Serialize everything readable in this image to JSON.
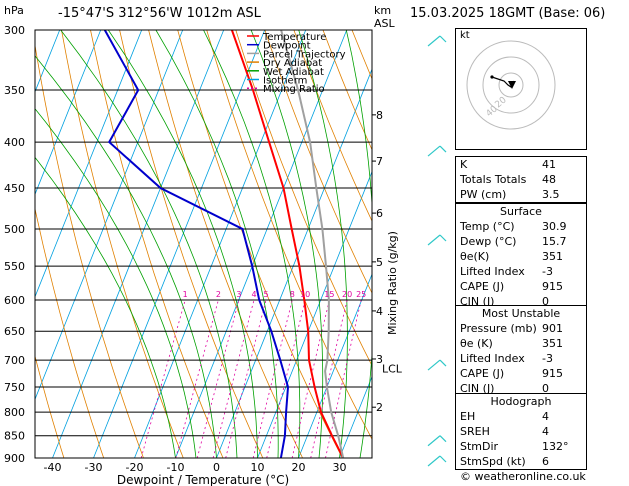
{
  "header": {
    "hpa_label": "hPa",
    "location": "-15°47'S  312°56'W  1012m  ASL",
    "km_label": "km",
    "asl_label": "ASL",
    "datetime": "15.03.2025  18GMT  (Base: 06)"
  },
  "legend": [
    "Temperature",
    "Dewpoint",
    "Parcel Trajectory",
    "Dry Adiabat",
    "Wet Adiabat",
    "Isotherm",
    "Mixing Ratio"
  ],
  "colors": {
    "temperature": "#ff0000",
    "dewpoint": "#0000cc",
    "parcel": "#a0a0a0",
    "dry_adiabat": "#e08000",
    "wet_adiabat": "#00a000",
    "isotherm": "#00a0e0",
    "mixing_ratio": "#e000a0",
    "wind_barb": "#30c8c8"
  },
  "chart_data": {
    "type": "line",
    "xlabel": "Dewpoint / Temperature (°C)",
    "ylabel_right": "Mixing Ratio (g/kg)",
    "x_ticks": [
      "-40",
      "-30",
      "-20",
      "-10",
      "0",
      "10",
      "20",
      "30"
    ],
    "pressure_ticks": [
      "300",
      "350",
      "400",
      "450",
      "500",
      "550",
      "600",
      "650",
      "700",
      "750",
      "800",
      "850",
      "900"
    ],
    "km_ticks": [
      "8",
      "7",
      "6",
      "5",
      "4",
      "3",
      "2"
    ],
    "lcl_label": "LCL",
    "mixing_ratio_labels": [
      "1",
      "2",
      "3",
      "4",
      "5",
      "8",
      "10",
      "15",
      "20",
      "25"
    ],
    "series": [
      {
        "name": "Temperature",
        "points": [
          [
            900,
            30.9
          ],
          [
            850,
            26
          ],
          [
            800,
            21
          ],
          [
            750,
            17
          ],
          [
            700,
            13
          ],
          [
            650,
            10
          ],
          [
            600,
            6
          ],
          [
            550,
            1.5
          ],
          [
            500,
            -4
          ],
          [
            450,
            -10
          ],
          [
            400,
            -18
          ],
          [
            350,
            -27
          ],
          [
            300,
            -38
          ]
        ]
      },
      {
        "name": "Dewpoint",
        "points": [
          [
            900,
            15.7
          ],
          [
            850,
            14.5
          ],
          [
            800,
            12.5
          ],
          [
            750,
            10.5
          ],
          [
            700,
            6
          ],
          [
            650,
            1
          ],
          [
            600,
            -5
          ],
          [
            550,
            -10
          ],
          [
            500,
            -16
          ],
          [
            450,
            -40
          ],
          [
            400,
            -57
          ],
          [
            350,
            -55
          ],
          [
            300,
            -69
          ]
        ]
      },
      {
        "name": "Parcel Trajectory",
        "points": [
          [
            900,
            30.9
          ],
          [
            850,
            27.5
          ],
          [
            800,
            23.5
          ],
          [
            750,
            20
          ],
          [
            720,
            18
          ],
          [
            700,
            17.5
          ],
          [
            650,
            15
          ],
          [
            600,
            12
          ],
          [
            550,
            8
          ],
          [
            500,
            3.5
          ],
          [
            450,
            -2
          ],
          [
            400,
            -8
          ],
          [
            350,
            -16
          ],
          [
            300,
            -26
          ]
        ]
      }
    ]
  },
  "hodograph": {
    "label": "kt",
    "rings": [
      "20",
      "40"
    ]
  },
  "indices": [
    {
      "k": "K",
      "v": "41"
    },
    {
      "k": "Totals Totals",
      "v": "48"
    },
    {
      "k": "PW (cm)",
      "v": "3.5"
    }
  ],
  "surface": {
    "title": "Surface",
    "rows": [
      {
        "k": "Temp (°C)",
        "v": "30.9"
      },
      {
        "k": "Dewp (°C)",
        "v": "15.7"
      },
      {
        "k": "θe(K)",
        "v": "351"
      },
      {
        "k": "Lifted Index",
        "v": "-3"
      },
      {
        "k": "CAPE (J)",
        "v": "915"
      },
      {
        "k": "CIN (J)",
        "v": "0"
      }
    ]
  },
  "most_unstable": {
    "title": "Most Unstable",
    "rows": [
      {
        "k": "Pressure (mb)",
        "v": "901"
      },
      {
        "k": "θe (K)",
        "v": "351"
      },
      {
        "k": "Lifted Index",
        "v": "-3"
      },
      {
        "k": "CAPE (J)",
        "v": "915"
      },
      {
        "k": "CIN (J)",
        "v": "0"
      }
    ]
  },
  "hodograph_table": {
    "title": "Hodograph",
    "rows": [
      {
        "k": "EH",
        "v": "4"
      },
      {
        "k": "SREH",
        "v": "4"
      },
      {
        "k": "StmDir",
        "v": "132°"
      },
      {
        "k": "StmSpd (kt)",
        "v": "6"
      }
    ]
  },
  "copyright": "© weatheronline.co.uk"
}
